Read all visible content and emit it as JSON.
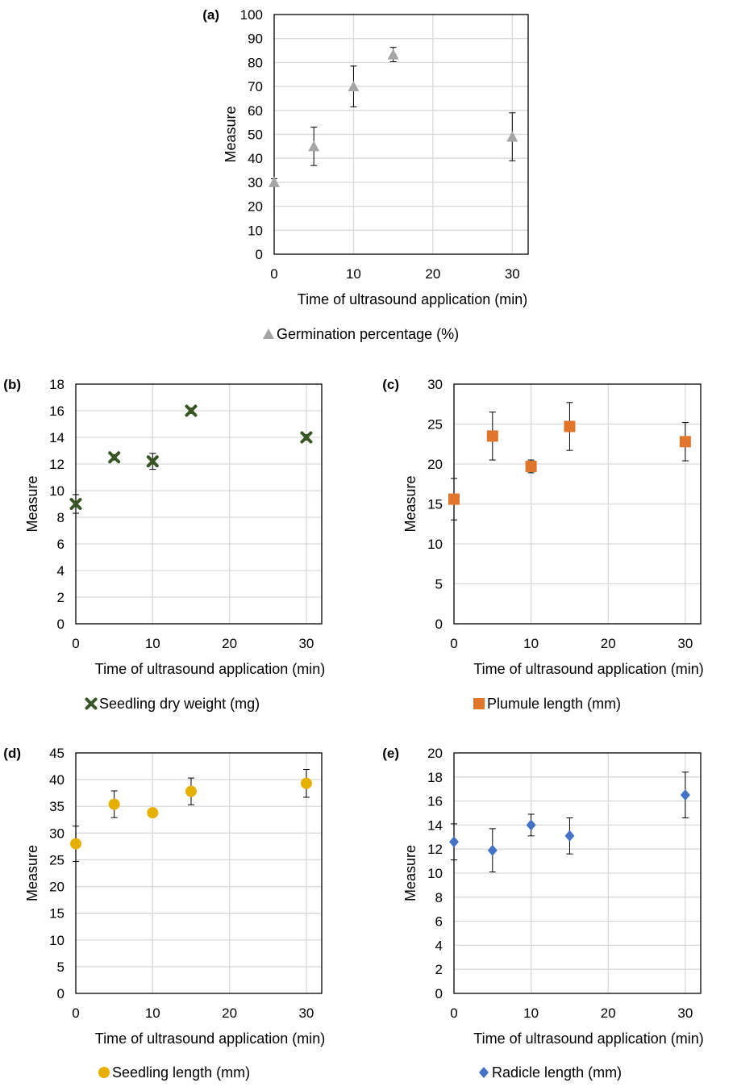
{
  "chart_data": [
    {
      "panel_label": "(a)",
      "type": "scatter",
      "xlabel": "Time of ultrasound application (min)",
      "ylabel": "Measure",
      "xlim": [
        0,
        32
      ],
      "ylim": [
        0,
        100
      ],
      "xticks": [
        0,
        10,
        20,
        30
      ],
      "yticks": [
        0,
        10,
        20,
        30,
        40,
        50,
        60,
        70,
        80,
        90,
        100
      ],
      "grid": true,
      "legend_position": "bottom",
      "series": [
        {
          "name": "Germination percentage (%)",
          "marker": "triangle",
          "color": "#a5a5a5",
          "x": [
            0,
            5,
            10,
            15,
            30
          ],
          "y": [
            30,
            45,
            70,
            83.3,
            49
          ],
          "err": [
            1.5,
            8,
            8.5,
            3,
            10
          ]
        }
      ]
    },
    {
      "panel_label": "(b)",
      "type": "scatter",
      "xlabel": "Time of ultrasound application (min)",
      "ylabel": "Measure",
      "xlim": [
        0,
        32
      ],
      "ylim": [
        0,
        18
      ],
      "xticks": [
        0,
        10,
        20,
        30
      ],
      "yticks": [
        0,
        2,
        4,
        6,
        8,
        10,
        12,
        14,
        16,
        18
      ],
      "grid": true,
      "legend_position": "bottom",
      "series": [
        {
          "name": "Seedling dry weight (mg)",
          "marker": "x",
          "color": "#375623",
          "x": [
            0,
            5,
            10,
            15,
            30
          ],
          "y": [
            9.0,
            12.5,
            12.2,
            16.0,
            14.0
          ],
          "err": [
            0.7,
            0.2,
            0.6,
            0.2,
            0.2
          ]
        }
      ]
    },
    {
      "panel_label": "(c)",
      "type": "scatter",
      "xlabel": "Time of ultrasound application (min)",
      "ylabel": "Measure",
      "xlim": [
        0,
        32
      ],
      "ylim": [
        0,
        30
      ],
      "xticks": [
        0,
        10,
        20,
        30
      ],
      "yticks": [
        0,
        5,
        10,
        15,
        20,
        25,
        30
      ],
      "grid": true,
      "legend_position": "bottom",
      "series": [
        {
          "name": "Plumule length (mm)",
          "marker": "square",
          "color": "#e0752c",
          "x": [
            0,
            5,
            10,
            15,
            30
          ],
          "y": [
            15.6,
            23.5,
            19.7,
            24.7,
            22.8
          ],
          "err": [
            2.6,
            3.0,
            0.8,
            3.0,
            2.4
          ]
        }
      ]
    },
    {
      "panel_label": "(d)",
      "type": "scatter",
      "xlabel": "Time of ultrasound application (min)",
      "ylabel": "Measure",
      "xlim": [
        0,
        32
      ],
      "ylim": [
        0,
        45
      ],
      "xticks": [
        0,
        10,
        20,
        30
      ],
      "yticks": [
        0,
        5,
        10,
        15,
        20,
        25,
        30,
        35,
        40,
        45
      ],
      "grid": true,
      "legend_position": "bottom",
      "series": [
        {
          "name": "Seedling length (mm)",
          "marker": "circle",
          "color": "#e5b000",
          "x": [
            0,
            5,
            10,
            15,
            30
          ],
          "y": [
            28.0,
            35.4,
            33.8,
            37.8,
            39.3
          ],
          "err": [
            3.3,
            2.5,
            0.3,
            2.5,
            2.6
          ]
        }
      ]
    },
    {
      "panel_label": "(e)",
      "type": "scatter",
      "xlabel": "Time of ultrasound application (min)",
      "ylabel": "Measure",
      "xlim": [
        0,
        32
      ],
      "ylim": [
        0,
        20
      ],
      "xticks": [
        0,
        10,
        20,
        30
      ],
      "yticks": [
        0,
        2,
        4,
        6,
        8,
        10,
        12,
        14,
        16,
        18,
        20
      ],
      "grid": true,
      "legend_position": "bottom",
      "series": [
        {
          "name": "Radicle length (mm)",
          "marker": "diamond",
          "color": "#4472c4",
          "x": [
            0,
            5,
            10,
            15,
            30
          ],
          "y": [
            12.6,
            11.9,
            14.0,
            13.1,
            16.5
          ],
          "err": [
            1.5,
            1.8,
            0.9,
            1.5,
            1.9
          ]
        }
      ]
    }
  ]
}
